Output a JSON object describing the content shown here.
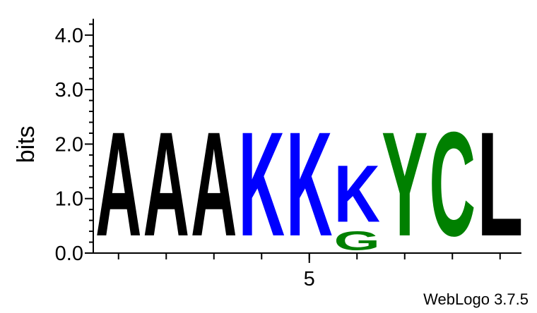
{
  "chart_data": {
    "type": "sequence-logo",
    "ylabel": "bits",
    "ylim": [
      0,
      4.3
    ],
    "y_ticks": [
      {
        "value": 0,
        "label": "0.0"
      },
      {
        "value": 1,
        "label": "1.0"
      },
      {
        "value": 2,
        "label": "2.0"
      },
      {
        "value": 3,
        "label": "3.0"
      },
      {
        "value": 4,
        "label": "4.0"
      }
    ],
    "x_tick_labels": [
      {
        "position": 5,
        "label": "5"
      }
    ],
    "colors": {
      "A": "#000000",
      "L": "#000000",
      "K": "#0000ff",
      "G": "#008000",
      "Y": "#008000",
      "C": "#008000"
    },
    "positions": [
      {
        "position": 1,
        "stack": [
          {
            "letter": "A",
            "bits": 2.2
          }
        ]
      },
      {
        "position": 2,
        "stack": [
          {
            "letter": "A",
            "bits": 2.2
          }
        ]
      },
      {
        "position": 3,
        "stack": [
          {
            "letter": "A",
            "bits": 2.2
          }
        ]
      },
      {
        "position": 4,
        "stack": [
          {
            "letter": "K",
            "bits": 2.2
          }
        ]
      },
      {
        "position": 5,
        "stack": [
          {
            "letter": "K",
            "bits": 2.2
          }
        ]
      },
      {
        "position": 6,
        "stack": [
          {
            "letter": "G",
            "bits": 0.4
          },
          {
            "letter": "K",
            "bits": 1.2
          }
        ]
      },
      {
        "position": 7,
        "stack": [
          {
            "letter": "Y",
            "bits": 2.2
          }
        ]
      },
      {
        "position": 8,
        "stack": [
          {
            "letter": "C",
            "bits": 2.2
          }
        ]
      },
      {
        "position": 9,
        "stack": [
          {
            "letter": "L",
            "bits": 2.2
          }
        ]
      }
    ]
  },
  "credit": "WebLogo 3.7.5"
}
